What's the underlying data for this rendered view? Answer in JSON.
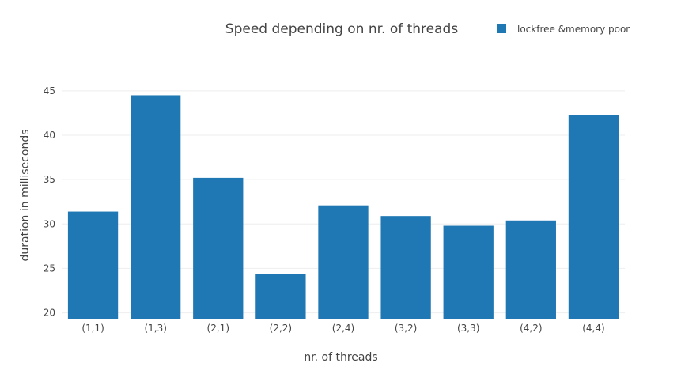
{
  "chart_data": {
    "type": "bar",
    "title": "Speed depending on nr. of threads",
    "xlabel": "nr. of threads",
    "ylabel": "duration in milliseconds",
    "categories": [
      "(1,1)",
      "(1,3)",
      "(2,1)",
      "(2,2)",
      "(2,4)",
      "(3,2)",
      "(3,3)",
      "(4,2)",
      "(4,4)"
    ],
    "series": [
      {
        "name": "lockfree &memory poor",
        "values": [
          31.4,
          44.5,
          35.2,
          24.4,
          32.1,
          30.9,
          29.8,
          30.4,
          42.3
        ]
      }
    ],
    "ylim": [
      19.25,
      46.5
    ],
    "yticks": [
      20,
      25,
      30,
      35,
      40,
      45
    ],
    "grid": true,
    "legend": "top-right",
    "color": "#1f77b4"
  }
}
